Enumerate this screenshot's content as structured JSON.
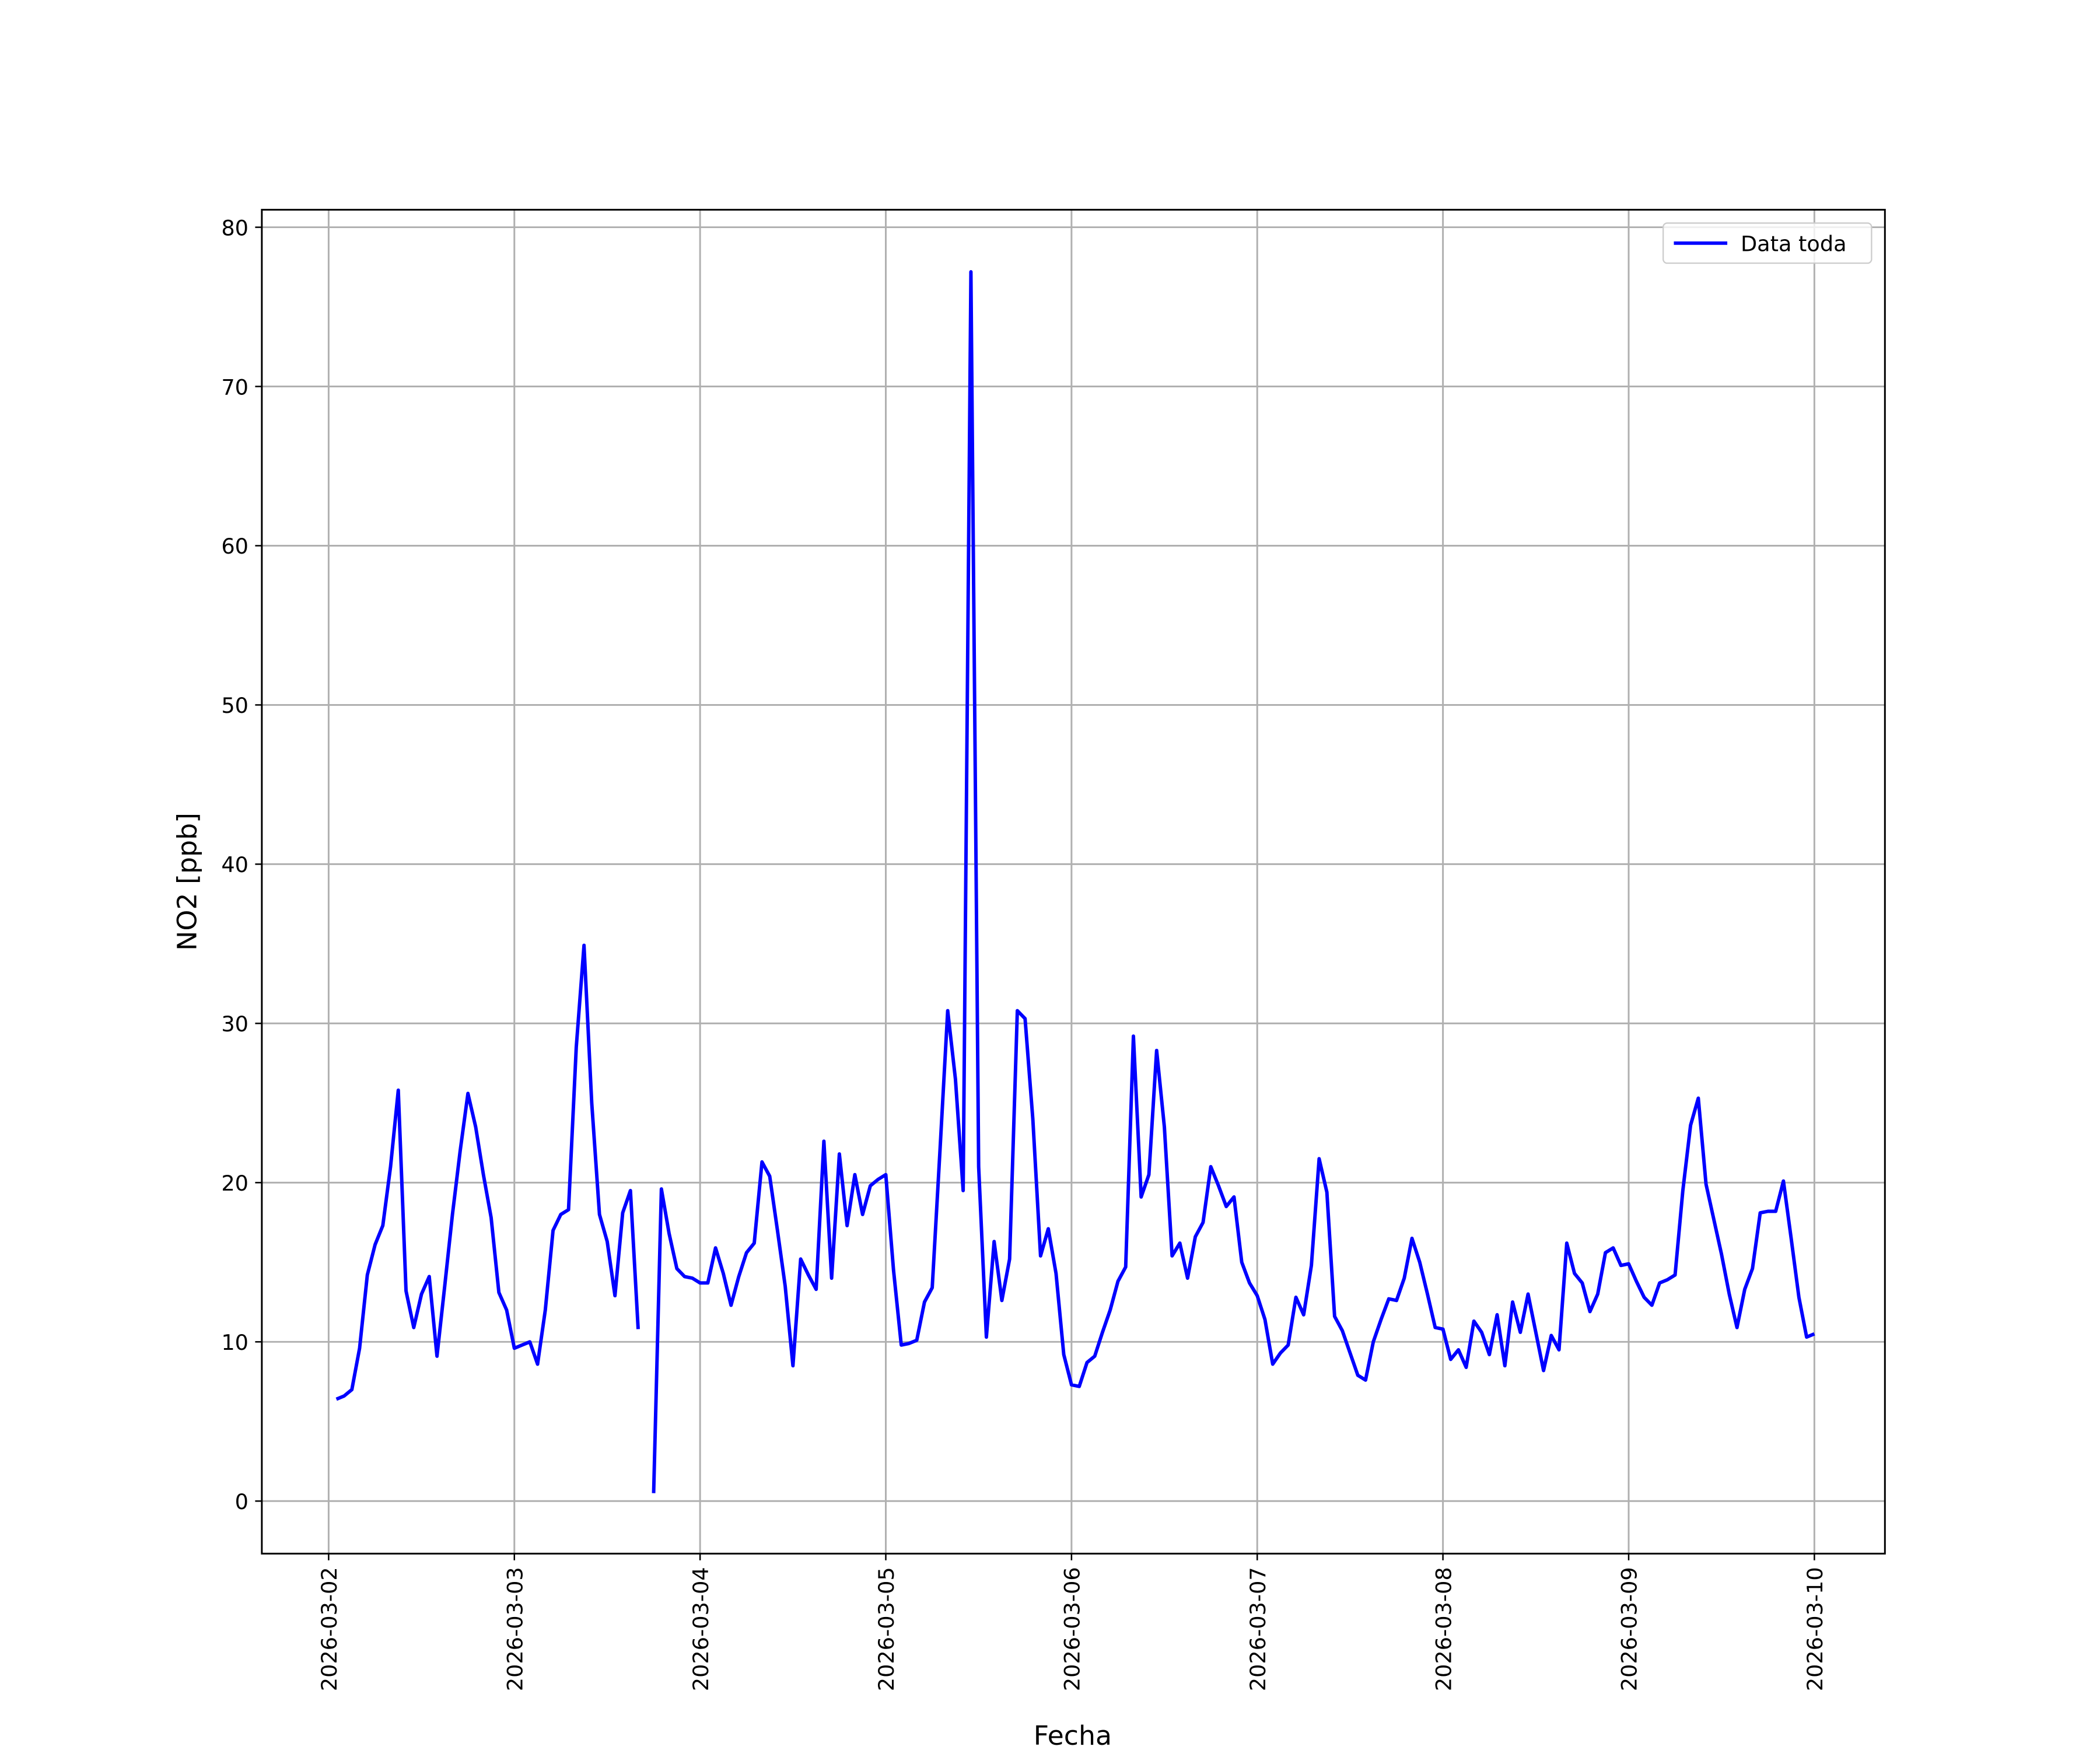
{
  "chart_data": {
    "type": "line",
    "xlabel": "Fecha",
    "ylabel": "NO2 [ppb]",
    "x": [
      "2026-03-02 01:00",
      "2026-03-02 02:00",
      "2026-03-02 03:00",
      "2026-03-02 04:00",
      "2026-03-02 05:00",
      "2026-03-02 06:00",
      "2026-03-02 07:00",
      "2026-03-02 08:00",
      "2026-03-02 09:00",
      "2026-03-02 10:00",
      "2026-03-02 11:00",
      "2026-03-02 12:00",
      "2026-03-02 13:00",
      "2026-03-02 14:00",
      "2026-03-02 15:00",
      "2026-03-02 16:00",
      "2026-03-02 17:00",
      "2026-03-02 18:00",
      "2026-03-02 19:00",
      "2026-03-02 20:00",
      "2026-03-02 21:00",
      "2026-03-02 22:00",
      "2026-03-02 23:00",
      "2026-03-03 00:00",
      "2026-03-03 01:00",
      "2026-03-03 02:00",
      "2026-03-03 03:00",
      "2026-03-03 04:00",
      "2026-03-03 05:00",
      "2026-03-03 06:00",
      "2026-03-03 07:00",
      "2026-03-03 08:00",
      "2026-03-03 09:00",
      "2026-03-03 10:00",
      "2026-03-03 11:00",
      "2026-03-03 12:00",
      "2026-03-03 13:00",
      "2026-03-03 14:00",
      "2026-03-03 15:00",
      "2026-03-03 16:00",
      "2026-03-03 17:00",
      "2026-03-03 18:00",
      "2026-03-03 19:00",
      "2026-03-03 20:00",
      "2026-03-03 21:00",
      "2026-03-03 22:00",
      "2026-03-03 23:00",
      "2026-03-04 00:00",
      "2026-03-04 01:00",
      "2026-03-04 02:00",
      "2026-03-04 03:00",
      "2026-03-04 04:00",
      "2026-03-04 05:00",
      "2026-03-04 06:00",
      "2026-03-04 07:00",
      "2026-03-04 08:00",
      "2026-03-04 09:00",
      "2026-03-04 10:00",
      "2026-03-04 11:00",
      "2026-03-04 12:00",
      "2026-03-04 13:00",
      "2026-03-04 14:00",
      "2026-03-04 15:00",
      "2026-03-04 16:00",
      "2026-03-04 17:00",
      "2026-03-04 18:00",
      "2026-03-04 19:00",
      "2026-03-04 20:00",
      "2026-03-04 21:00",
      "2026-03-04 22:00",
      "2026-03-04 23:00",
      "2026-03-05 00:00",
      "2026-03-05 01:00",
      "2026-03-05 02:00",
      "2026-03-05 03:00",
      "2026-03-05 04:00",
      "2026-03-05 05:00",
      "2026-03-05 06:00",
      "2026-03-05 07:00",
      "2026-03-05 08:00",
      "2026-03-05 09:00",
      "2026-03-05 10:00",
      "2026-03-05 11:00",
      "2026-03-05 12:00",
      "2026-03-05 13:00",
      "2026-03-05 14:00",
      "2026-03-05 15:00",
      "2026-03-05 16:00",
      "2026-03-05 17:00",
      "2026-03-05 18:00",
      "2026-03-05 19:00",
      "2026-03-05 20:00",
      "2026-03-05 21:00",
      "2026-03-05 22:00",
      "2026-03-05 23:00",
      "2026-03-06 00:00",
      "2026-03-06 01:00",
      "2026-03-06 02:00",
      "2026-03-06 03:00",
      "2026-03-06 04:00",
      "2026-03-06 05:00",
      "2026-03-06 06:00",
      "2026-03-06 07:00",
      "2026-03-06 08:00",
      "2026-03-06 09:00",
      "2026-03-06 10:00",
      "2026-03-06 11:00",
      "2026-03-06 12:00",
      "2026-03-06 13:00",
      "2026-03-06 14:00",
      "2026-03-06 15:00",
      "2026-03-06 16:00",
      "2026-03-06 17:00",
      "2026-03-06 18:00",
      "2026-03-06 19:00",
      "2026-03-06 20:00",
      "2026-03-06 21:00",
      "2026-03-06 22:00",
      "2026-03-06 23:00",
      "2026-03-07 00:00",
      "2026-03-07 01:00",
      "2026-03-07 02:00",
      "2026-03-07 03:00",
      "2026-03-07 04:00",
      "2026-03-07 05:00",
      "2026-03-07 06:00",
      "2026-03-07 07:00",
      "2026-03-07 08:00",
      "2026-03-07 09:00",
      "2026-03-07 10:00",
      "2026-03-07 11:00",
      "2026-03-07 12:00",
      "2026-03-07 13:00",
      "2026-03-07 14:00",
      "2026-03-07 15:00",
      "2026-03-07 16:00",
      "2026-03-07 17:00",
      "2026-03-07 18:00",
      "2026-03-07 19:00",
      "2026-03-07 20:00",
      "2026-03-07 21:00",
      "2026-03-07 22:00",
      "2026-03-07 23:00",
      "2026-03-08 00:00",
      "2026-03-08 01:00",
      "2026-03-08 02:00",
      "2026-03-08 03:00",
      "2026-03-08 04:00",
      "2026-03-08 05:00",
      "2026-03-08 06:00",
      "2026-03-08 07:00",
      "2026-03-08 08:00",
      "2026-03-08 09:00",
      "2026-03-08 10:00",
      "2026-03-08 11:00",
      "2026-03-08 12:00",
      "2026-03-08 13:00",
      "2026-03-08 14:00",
      "2026-03-08 15:00",
      "2026-03-08 16:00",
      "2026-03-08 17:00",
      "2026-03-08 18:00",
      "2026-03-08 19:00",
      "2026-03-08 20:00",
      "2026-03-08 21:00",
      "2026-03-08 22:00",
      "2026-03-08 23:00",
      "2026-03-09 00:00",
      "2026-03-09 01:00",
      "2026-03-09 02:00",
      "2026-03-09 03:00",
      "2026-03-09 04:00",
      "2026-03-09 05:00",
      "2026-03-09 06:00",
      "2026-03-09 07:00",
      "2026-03-09 08:00",
      "2026-03-09 09:00",
      "2026-03-09 10:00",
      "2026-03-09 11:00",
      "2026-03-09 12:00",
      "2026-03-09 13:00",
      "2026-03-09 14:00",
      "2026-03-09 15:00",
      "2026-03-09 16:00",
      "2026-03-09 17:00",
      "2026-03-09 18:00",
      "2026-03-09 19:00",
      "2026-03-09 20:00",
      "2026-03-09 21:00",
      "2026-03-09 22:00",
      "2026-03-09 23:00",
      "2026-03-10 00:00"
    ],
    "series": [
      {
        "name": "Data toda",
        "color": "#0000ff",
        "values": [
          6.4,
          6.6,
          7.0,
          9.6,
          14.2,
          16.1,
          17.3,
          21,
          25.8,
          13.2,
          10.9,
          13,
          14.1,
          9.1,
          13.5,
          18,
          22,
          25.6,
          23.5,
          20.5,
          17.8,
          13.1,
          12,
          9.6,
          9.8,
          10,
          8.6,
          12,
          17,
          18,
          18.3,
          28.5,
          34.9,
          25,
          18,
          16.3,
          12.9,
          18.1,
          19.5,
          10.8,
          null,
          0.5,
          19.6,
          16.8,
          14.6,
          14.1,
          14,
          13.7,
          13.7,
          15.9,
          14.3,
          12.3,
          14.1,
          15.6,
          16.2,
          21.3,
          20.4,
          17,
          13.5,
          8.5,
          15.2,
          14.2,
          13.3,
          22.6,
          14,
          21.8,
          17.3,
          20.5,
          18,
          19.8,
          20.2,
          20.5,
          14.5,
          9.8,
          9.9,
          10.1,
          12.5,
          13.4,
          22,
          30.8,
          26.5,
          19.5,
          77.2,
          21,
          10.3,
          16.3,
          12.6,
          15.2,
          30.8,
          30.3,
          24,
          15.4,
          17.1,
          14.3,
          9.2,
          7.3,
          7.2,
          8.7,
          9.1,
          10.6,
          12,
          13.8,
          14.7,
          29.2,
          19.1,
          20.5,
          28.3,
          23.5,
          15.4,
          16.2,
          14,
          16.6,
          17.5,
          21,
          19.8,
          18.5,
          19.1,
          15,
          13.7,
          12.9,
          11.4,
          8.6,
          9.3,
          9.8,
          12.8,
          11.7,
          14.8,
          21.5,
          19.4,
          11.6,
          10.7,
          9.3,
          7.9,
          7.6,
          10,
          11.4,
          12.7,
          12.6,
          14,
          16.5,
          15,
          13,
          10.9,
          10.8,
          8.9,
          9.5,
          8.4,
          11.3,
          10.6,
          9.2,
          11.7,
          8.5,
          12.5,
          10.6,
          13,
          10.6,
          8.2,
          10.4,
          9.5,
          16.2,
          14.3,
          13.7,
          11.9,
          13,
          15.6,
          15.9,
          14.8,
          14.9,
          13.8,
          12.8,
          12.3,
          13.7,
          13.9,
          14.2,
          19.5,
          23.6,
          25.3,
          19.9,
          17.7,
          15.5,
          13,
          10.9,
          13.3,
          14.6,
          18.1,
          18.2,
          18.2,
          20.1,
          16.5,
          12.8,
          10.3,
          10.5
        ]
      }
    ],
    "xlim": [
      "2026-03-01 15:22",
      "2026-03-10 09:07"
    ],
    "xticks": [
      "2026-03-02",
      "2026-03-03",
      "2026-03-04",
      "2026-03-05",
      "2026-03-06",
      "2026-03-07",
      "2026-03-08",
      "2026-03-09",
      "2026-03-10"
    ],
    "ylim": [
      -3.3,
      81.1
    ],
    "yticks": [
      0,
      10,
      20,
      30,
      40,
      50,
      60,
      70,
      80
    ],
    "grid": true,
    "legend": "upper right"
  }
}
